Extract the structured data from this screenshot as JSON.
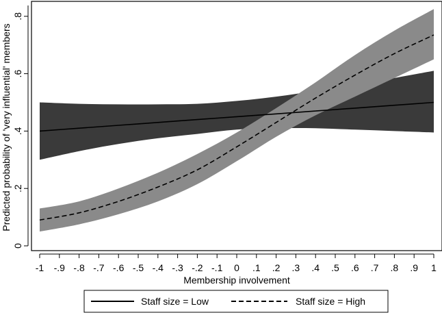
{
  "chart_data": {
    "type": "line",
    "title": "",
    "xlabel": "Membership involvement",
    "ylabel": "Predicted probability of 'very influential' members",
    "xlim": [
      -1,
      1
    ],
    "ylim": [
      0,
      0.85
    ],
    "x_ticks": [
      {
        "value": -1.0,
        "label": "-1"
      },
      {
        "value": -0.9,
        "label": "-.9"
      },
      {
        "value": -0.8,
        "label": "-.8"
      },
      {
        "value": -0.7,
        "label": "-.7"
      },
      {
        "value": -0.6,
        "label": "-.6"
      },
      {
        "value": -0.5,
        "label": "-.5"
      },
      {
        "value": -0.4,
        "label": "-.4"
      },
      {
        "value": -0.3,
        "label": "-.3"
      },
      {
        "value": -0.2,
        "label": "-.2"
      },
      {
        "value": -0.1,
        "label": "-.1"
      },
      {
        "value": 0.0,
        "label": "0"
      },
      {
        "value": 0.1,
        "label": ".1"
      },
      {
        "value": 0.2,
        "label": ".2"
      },
      {
        "value": 0.3,
        "label": ".3"
      },
      {
        "value": 0.4,
        "label": ".4"
      },
      {
        "value": 0.5,
        "label": ".5"
      },
      {
        "value": 0.6,
        "label": ".6"
      },
      {
        "value": 0.7,
        "label": ".7"
      },
      {
        "value": 0.8,
        "label": ".8"
      },
      {
        "value": 0.9,
        "label": ".9"
      },
      {
        "value": 1.0,
        "label": "1"
      }
    ],
    "y_ticks": [
      {
        "value": 0.0,
        "label": "0"
      },
      {
        "value": 0.2,
        "label": ".2"
      },
      {
        "value": 0.4,
        "label": ".4"
      },
      {
        "value": 0.6,
        "label": ".6"
      },
      {
        "value": 0.8,
        "label": ".8"
      }
    ],
    "grid": false,
    "legend_position": "bottom",
    "series": [
      {
        "name": "Staff size = Low",
        "line_style": "solid",
        "line_color": "#000000",
        "band_color": "#3a3a3a",
        "x": [
          -1.0,
          -0.8,
          -0.6,
          -0.4,
          -0.2,
          0.0,
          0.2,
          0.4,
          0.6,
          0.8,
          1.0
        ],
        "y": [
          0.4,
          0.41,
          0.42,
          0.43,
          0.44,
          0.45,
          0.46,
          0.47,
          0.48,
          0.49,
          0.5
        ],
        "ci_low": [
          0.3,
          0.33,
          0.355,
          0.375,
          0.39,
          0.405,
          0.41,
          0.41,
          0.405,
          0.4,
          0.395
        ],
        "ci_high": [
          0.5,
          0.495,
          0.493,
          0.493,
          0.495,
          0.505,
          0.52,
          0.54,
          0.56,
          0.585,
          0.61
        ]
      },
      {
        "name": "Staff size = High",
        "line_style": "dashed",
        "line_color": "#000000",
        "band_color": "#8a8a8a",
        "x": [
          -1.0,
          -0.8,
          -0.6,
          -0.4,
          -0.2,
          0.0,
          0.2,
          0.4,
          0.6,
          0.8,
          1.0
        ],
        "y": [
          0.09,
          0.115,
          0.155,
          0.205,
          0.265,
          0.345,
          0.43,
          0.515,
          0.595,
          0.67,
          0.735
        ],
        "ci_low": [
          0.05,
          0.075,
          0.11,
          0.155,
          0.215,
          0.295,
          0.38,
          0.455,
          0.52,
          0.585,
          0.65
        ],
        "ci_high": [
          0.13,
          0.155,
          0.2,
          0.255,
          0.32,
          0.395,
          0.48,
          0.57,
          0.665,
          0.75,
          0.825
        ]
      }
    ]
  }
}
